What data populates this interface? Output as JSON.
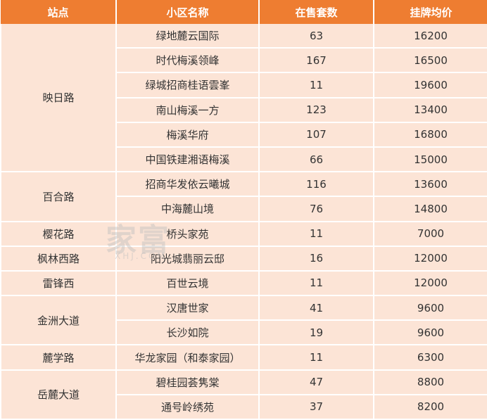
{
  "headers": [
    "站点",
    "小区名称",
    "在售套数",
    "挂牌均价"
  ],
  "stations": [
    {
      "name": "映日路",
      "rows": [
        {
          "community": "绿地麓云国际",
          "count": "63",
          "price": "16200"
        },
        {
          "community": "时代梅溪领峰",
          "count": "167",
          "price": "16500"
        },
        {
          "community": "绿城招商桂语雲峯",
          "count": "11",
          "price": "19600"
        },
        {
          "community": "南山梅溪一方",
          "count": "123",
          "price": "13400"
        },
        {
          "community": "梅溪华府",
          "count": "107",
          "price": "16800"
        },
        {
          "community": "中国铁建湘语梅溪",
          "count": "66",
          "price": "15000"
        }
      ]
    },
    {
      "name": "百合路",
      "rows": [
        {
          "community": "招商华发依云曦城",
          "count": "116",
          "price": "13600"
        },
        {
          "community": "中海麓山境",
          "count": "76",
          "price": "14800"
        }
      ]
    },
    {
      "name": "樱花路",
      "rows": [
        {
          "community": "桥头家苑",
          "count": "11",
          "price": "7000"
        }
      ]
    },
    {
      "name": "枫林西路",
      "rows": [
        {
          "community": "阳光城翡丽云邸",
          "count": "16",
          "price": "12000"
        }
      ]
    },
    {
      "name": "雷锋西",
      "rows": [
        {
          "community": "百世云境",
          "count": "11",
          "price": "12000"
        }
      ]
    },
    {
      "name": "金洲大道",
      "rows": [
        {
          "community": "汉唐世家",
          "count": "41",
          "price": "9600"
        },
        {
          "community": "长沙如院",
          "count": "19",
          "price": "9600"
        }
      ]
    },
    {
      "name": "麓学路",
      "rows": [
        {
          "community": "华龙家园（和泰家园）",
          "count": "11",
          "price": "6300"
        }
      ]
    },
    {
      "name": "岳麓大道",
      "rows": [
        {
          "community": "碧桂园荟隽棠",
          "count": "47",
          "price": "8800"
        },
        {
          "community": "通号岭绣苑",
          "count": "37",
          "price": "8200"
        }
      ]
    }
  ],
  "watermark": {
    "main": "家富",
    "sub": "XHJ.COM"
  },
  "colors": {
    "header_bg": "#ee7d31",
    "cell_bg": "#fce4d6"
  }
}
